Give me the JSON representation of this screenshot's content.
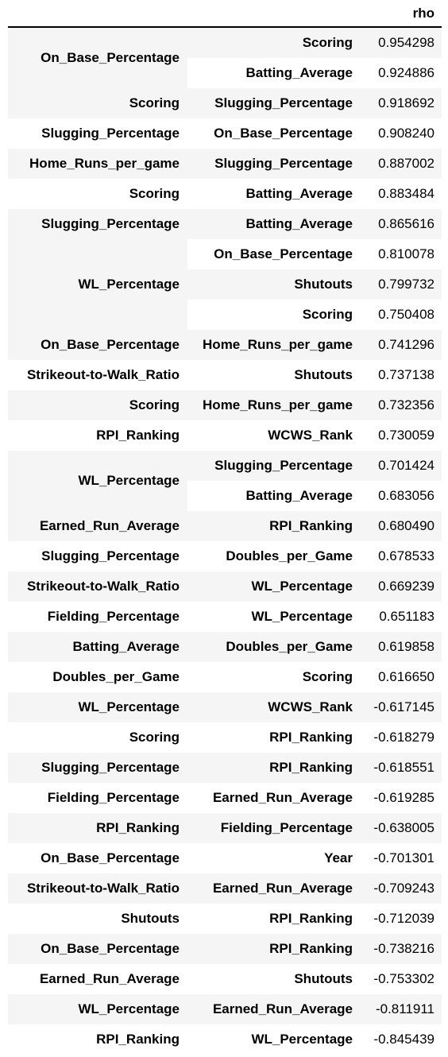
{
  "table": {
    "columns": [
      "rho"
    ],
    "groups": [
      {
        "level0": "On_Base_Percentage",
        "rows": [
          {
            "level1": "Scoring",
            "rho": "0.954298"
          },
          {
            "level1": "Batting_Average",
            "rho": "0.924886"
          }
        ]
      },
      {
        "level0": "Scoring",
        "rows": [
          {
            "level1": "Slugging_Percentage",
            "rho": "0.918692"
          }
        ]
      },
      {
        "level0": "Slugging_Percentage",
        "rows": [
          {
            "level1": "On_Base_Percentage",
            "rho": "0.908240"
          }
        ]
      },
      {
        "level0": "Home_Runs_per_game",
        "rows": [
          {
            "level1": "Slugging_Percentage",
            "rho": "0.887002"
          }
        ]
      },
      {
        "level0": "Scoring",
        "rows": [
          {
            "level1": "Batting_Average",
            "rho": "0.883484"
          }
        ]
      },
      {
        "level0": "Slugging_Percentage",
        "rows": [
          {
            "level1": "Batting_Average",
            "rho": "0.865616"
          }
        ]
      },
      {
        "level0": "WL_Percentage",
        "rows": [
          {
            "level1": "On_Base_Percentage",
            "rho": "0.810078"
          },
          {
            "level1": "Shutouts",
            "rho": "0.799732"
          },
          {
            "level1": "Scoring",
            "rho": "0.750408"
          }
        ]
      },
      {
        "level0": "On_Base_Percentage",
        "rows": [
          {
            "level1": "Home_Runs_per_game",
            "rho": "0.741296"
          }
        ]
      },
      {
        "level0": "Strikeout-to-Walk_Ratio",
        "rows": [
          {
            "level1": "Shutouts",
            "rho": "0.737138"
          }
        ]
      },
      {
        "level0": "Scoring",
        "rows": [
          {
            "level1": "Home_Runs_per_game",
            "rho": "0.732356"
          }
        ]
      },
      {
        "level0": "RPI_Ranking",
        "rows": [
          {
            "level1": "WCWS_Rank",
            "rho": "0.730059"
          }
        ]
      },
      {
        "level0": "WL_Percentage",
        "rows": [
          {
            "level1": "Slugging_Percentage",
            "rho": "0.701424"
          },
          {
            "level1": "Batting_Average",
            "rho": "0.683056"
          }
        ]
      },
      {
        "level0": "Earned_Run_Average",
        "rows": [
          {
            "level1": "RPI_Ranking",
            "rho": "0.680490"
          }
        ]
      },
      {
        "level0": "Slugging_Percentage",
        "rows": [
          {
            "level1": "Doubles_per_Game",
            "rho": "0.678533"
          }
        ]
      },
      {
        "level0": "Strikeout-to-Walk_Ratio",
        "rows": [
          {
            "level1": "WL_Percentage",
            "rho": "0.669239"
          }
        ]
      },
      {
        "level0": "Fielding_Percentage",
        "rows": [
          {
            "level1": "WL_Percentage",
            "rho": "0.651183"
          }
        ]
      },
      {
        "level0": "Batting_Average",
        "rows": [
          {
            "level1": "Doubles_per_Game",
            "rho": "0.619858"
          }
        ]
      },
      {
        "level0": "Doubles_per_Game",
        "rows": [
          {
            "level1": "Scoring",
            "rho": "0.616650"
          }
        ]
      },
      {
        "level0": "WL_Percentage",
        "rows": [
          {
            "level1": "WCWS_Rank",
            "rho": "-0.617145"
          }
        ]
      },
      {
        "level0": "Scoring",
        "rows": [
          {
            "level1": "RPI_Ranking",
            "rho": "-0.618279"
          }
        ]
      },
      {
        "level0": "Slugging_Percentage",
        "rows": [
          {
            "level1": "RPI_Ranking",
            "rho": "-0.618551"
          }
        ]
      },
      {
        "level0": "Fielding_Percentage",
        "rows": [
          {
            "level1": "Earned_Run_Average",
            "rho": "-0.619285"
          }
        ]
      },
      {
        "level0": "RPI_Ranking",
        "rows": [
          {
            "level1": "Fielding_Percentage",
            "rho": "-0.638005"
          }
        ]
      },
      {
        "level0": "On_Base_Percentage",
        "rows": [
          {
            "level1": "Year",
            "rho": "-0.701301"
          }
        ]
      },
      {
        "level0": "Strikeout-to-Walk_Ratio",
        "rows": [
          {
            "level1": "Earned_Run_Average",
            "rho": "-0.709243"
          }
        ]
      },
      {
        "level0": "Shutouts",
        "rows": [
          {
            "level1": "RPI_Ranking",
            "rho": "-0.712039"
          }
        ]
      },
      {
        "level0": "On_Base_Percentage",
        "rows": [
          {
            "level1": "RPI_Ranking",
            "rho": "-0.738216"
          }
        ]
      },
      {
        "level0": "Earned_Run_Average",
        "rows": [
          {
            "level1": "Shutouts",
            "rho": "-0.753302"
          }
        ]
      },
      {
        "level0": "WL_Percentage",
        "rows": [
          {
            "level1": "Earned_Run_Average",
            "rho": "-0.811911"
          }
        ]
      },
      {
        "level0": "RPI_Ranking",
        "rows": [
          {
            "level1": "WL_Percentage",
            "rho": "-0.845439"
          }
        ]
      }
    ]
  }
}
